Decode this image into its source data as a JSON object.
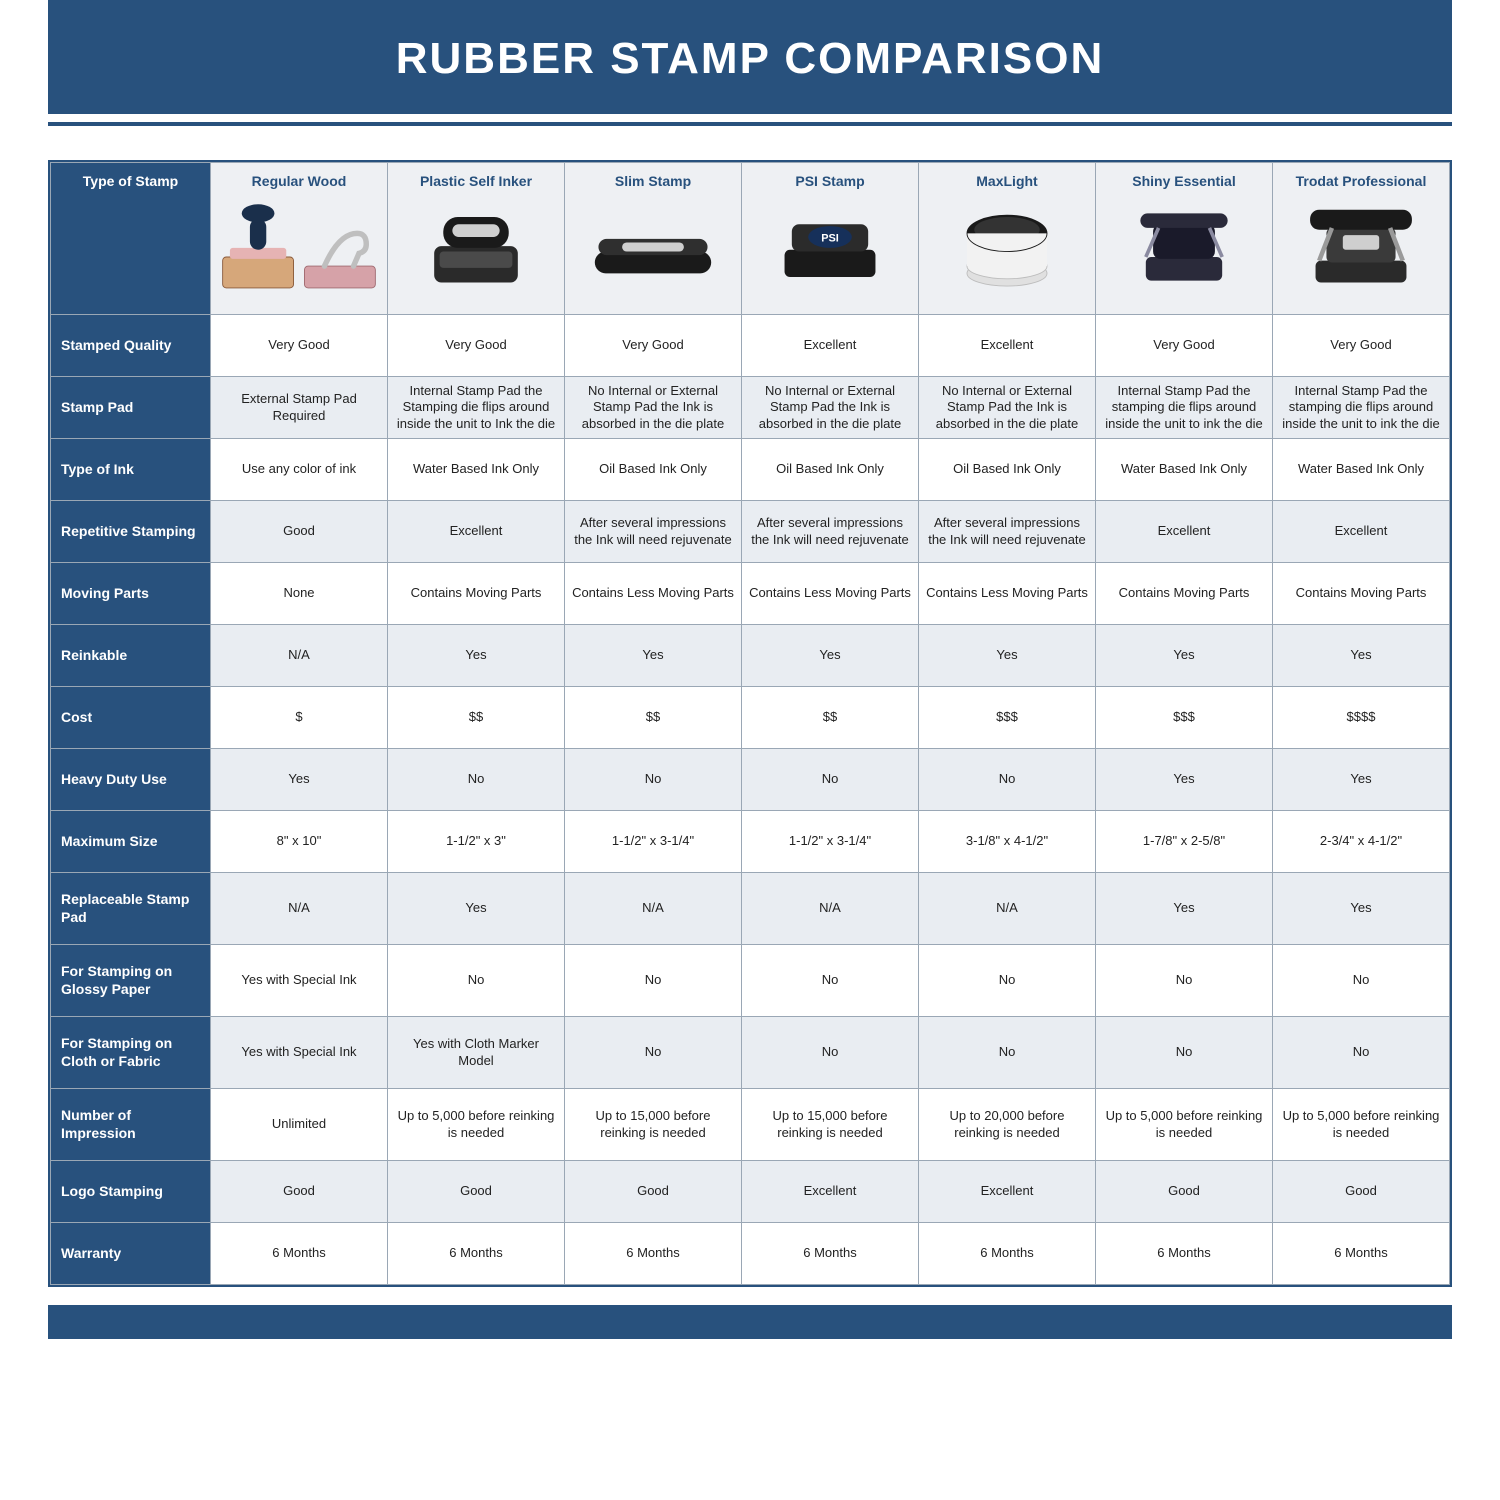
{
  "title": "RUBBER STAMP COMPARISON",
  "colors": {
    "brand": "#28517d",
    "alt_row": "#e9edf2",
    "header_bg": "#eef0f3",
    "border": "#9aa7b5",
    "text": "#222222"
  },
  "columns": [
    {
      "key": "regular_wood",
      "label": "Regular Wood",
      "icon": "wood"
    },
    {
      "key": "plastic_self_inker",
      "label": "Plastic Self Inker",
      "icon": "selfinker"
    },
    {
      "key": "slim_stamp",
      "label": "Slim Stamp",
      "icon": "slim"
    },
    {
      "key": "psi_stamp",
      "label": "PSI Stamp",
      "icon": "psi"
    },
    {
      "key": "maxlight",
      "label": "MaxLight",
      "icon": "maxlight"
    },
    {
      "key": "shiny_essential",
      "label": "Shiny Essential",
      "icon": "shiny"
    },
    {
      "key": "trodat_professional",
      "label": "Trodat Professional",
      "icon": "trodat"
    }
  ],
  "row_labels": [
    "Type of Stamp",
    "Stamped Quality",
    "Stamp Pad",
    "Type of Ink",
    "Repetitive Stamping",
    "Moving Parts",
    "Reinkable",
    "Cost",
    "Heavy Duty Use",
    "Maximum Size",
    "Replaceable Stamp Pad",
    "For Stamping on Glossy Paper",
    "For Stamping on Cloth or Fabric",
    "Number of Impression",
    "Logo Stamping",
    "Warranty"
  ],
  "rows": [
    {
      "label_idx": 1,
      "cells": [
        "Very Good",
        "Very Good",
        "Very Good",
        "Excellent",
        "Excellent",
        "Very Good",
        "Very Good"
      ]
    },
    {
      "label_idx": 2,
      "cells": [
        "External Stamp Pad Required",
        "Internal Stamp Pad the Stamping die flips around inside the unit to Ink the die",
        "No Internal or External Stamp Pad the Ink is absorbed in the die plate",
        "No Internal or External Stamp Pad the Ink is absorbed in the die plate",
        "No Internal or External Stamp Pad the Ink is absorbed in the die plate",
        "Internal Stamp Pad the stamping die flips around inside the unit to ink the die",
        "Internal Stamp Pad the stamping die flips around inside the unit to ink the die"
      ]
    },
    {
      "label_idx": 3,
      "cells": [
        "Use any color of ink",
        "Water Based Ink Only",
        "Oil Based Ink Only",
        "Oil Based Ink Only",
        "Oil Based Ink Only",
        "Water Based Ink Only",
        "Water Based Ink Only"
      ]
    },
    {
      "label_idx": 4,
      "cells": [
        "Good",
        "Excellent",
        "After several impressions the Ink will need rejuvenate",
        "After several impressions the Ink will need rejuvenate",
        "After several impressions the Ink will need rejuvenate",
        "Excellent",
        "Excellent"
      ]
    },
    {
      "label_idx": 5,
      "cells": [
        "None",
        "Contains Moving Parts",
        "Contains Less Moving Parts",
        "Contains Less Moving Parts",
        "Contains Less Moving Parts",
        "Contains Moving Parts",
        "Contains Moving Parts"
      ]
    },
    {
      "label_idx": 6,
      "cells": [
        "N/A",
        "Yes",
        "Yes",
        "Yes",
        "Yes",
        "Yes",
        "Yes"
      ]
    },
    {
      "label_idx": 7,
      "cells": [
        "$",
        "$$",
        "$$",
        "$$",
        "$$$",
        "$$$",
        "$$$$"
      ]
    },
    {
      "label_idx": 8,
      "cells": [
        "Yes",
        "No",
        "No",
        "No",
        "No",
        "Yes",
        "Yes"
      ]
    },
    {
      "label_idx": 9,
      "cells": [
        "8\" x 10\"",
        "1-1/2\" x 3\"",
        "1-1/2\" x 3-1/4\"",
        "1-1/2\" x 3-1/4\"",
        "3-1/8\" x 4-1/2\"",
        "1-7/8\" x 2-5/8\"",
        "2-3/4\" x 4-1/2\""
      ]
    },
    {
      "label_idx": 10,
      "cells": [
        "N/A",
        "Yes",
        "N/A",
        "N/A",
        "N/A",
        "Yes",
        "Yes"
      ]
    },
    {
      "label_idx": 11,
      "cells": [
        "Yes with Special Ink",
        "No",
        "No",
        "No",
        "No",
        "No",
        "No"
      ]
    },
    {
      "label_idx": 12,
      "cells": [
        "Yes with Special Ink",
        "Yes with Cloth Marker Model",
        "No",
        "No",
        "No",
        "No",
        "No"
      ]
    },
    {
      "label_idx": 13,
      "cells": [
        "Unlimited",
        "Up to 5,000 before reinking is needed",
        "Up to 15,000 before reinking is needed",
        "Up to 15,000 before reinking is needed",
        "Up to 20,000 before reinking is needed",
        "Up to 5,000 before reinking is needed",
        "Up to 5,000 before reinking is needed"
      ]
    },
    {
      "label_idx": 14,
      "cells": [
        "Good",
        "Good",
        "Good",
        "Excellent",
        "Excellent",
        "Good",
        "Good"
      ]
    },
    {
      "label_idx": 15,
      "cells": [
        "6 Months",
        "6 Months",
        "6 Months",
        "6 Months",
        "6 Months",
        "6 Months",
        "6 Months"
      ]
    }
  ]
}
